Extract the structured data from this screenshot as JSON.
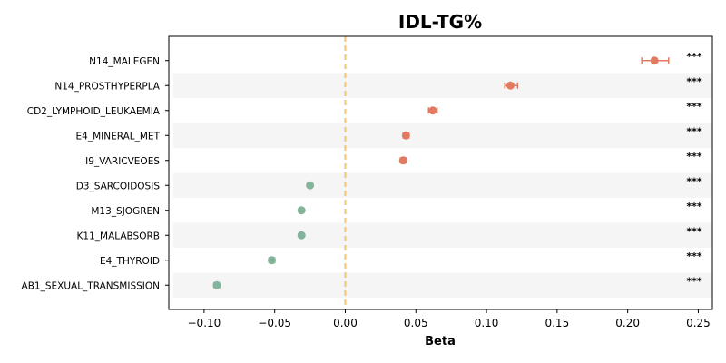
{
  "chart_data": {
    "type": "scatter",
    "title": "IDL-TG%",
    "xlabel": "Beta",
    "ylabel": "",
    "xlim": [
      -0.125,
      0.26
    ],
    "xticks": [
      -0.1,
      -0.05,
      0.0,
      0.05,
      0.1,
      0.15,
      0.2,
      0.25
    ],
    "xtick_labels": [
      "−0.10",
      "−0.05",
      "0.00",
      "0.05",
      "0.10",
      "0.15",
      "0.20",
      "0.25"
    ],
    "reference_line": {
      "x": 0.0,
      "style": "dashed",
      "color": "#f5c77e"
    },
    "grid": false,
    "alternating_row_bands": true,
    "colors": {
      "positive": "#e07b62",
      "negative": "#84b59c",
      "band": "#f5f5f5"
    },
    "points": [
      {
        "label": "N14_MALEGEN",
        "beta": 0.219,
        "ci_low": 0.21,
        "ci_high": 0.229,
        "significance": "***"
      },
      {
        "label": "N14_PROSTHYPERPLA",
        "beta": 0.117,
        "ci_low": 0.113,
        "ci_high": 0.122,
        "significance": "***"
      },
      {
        "label": "CD2_LYMPHOID_LEUKAEMIA",
        "beta": 0.062,
        "ci_low": 0.059,
        "ci_high": 0.065,
        "significance": "***"
      },
      {
        "label": "E4_MINERAL_MET",
        "beta": 0.043,
        "ci_low": 0.041,
        "ci_high": 0.045,
        "significance": "***"
      },
      {
        "label": "I9_VARICVEOES",
        "beta": 0.041,
        "ci_low": 0.039,
        "ci_high": 0.043,
        "significance": "***"
      },
      {
        "label": "D3_SARCOIDOSIS",
        "beta": -0.025,
        "ci_low": -0.026,
        "ci_high": -0.024,
        "significance": "***"
      },
      {
        "label": "M13_SJOGREN",
        "beta": -0.031,
        "ci_low": -0.032,
        "ci_high": -0.03,
        "significance": "***"
      },
      {
        "label": "K11_MALABSORB",
        "beta": -0.031,
        "ci_low": -0.032,
        "ci_high": -0.03,
        "significance": "***"
      },
      {
        "label": "E4_THYROID",
        "beta": -0.052,
        "ci_low": -0.054,
        "ci_high": -0.05,
        "significance": "***"
      },
      {
        "label": "AB1_SEXUAL_TRANSMISSION",
        "beta": -0.091,
        "ci_low": -0.093,
        "ci_high": -0.089,
        "significance": "***"
      }
    ]
  }
}
